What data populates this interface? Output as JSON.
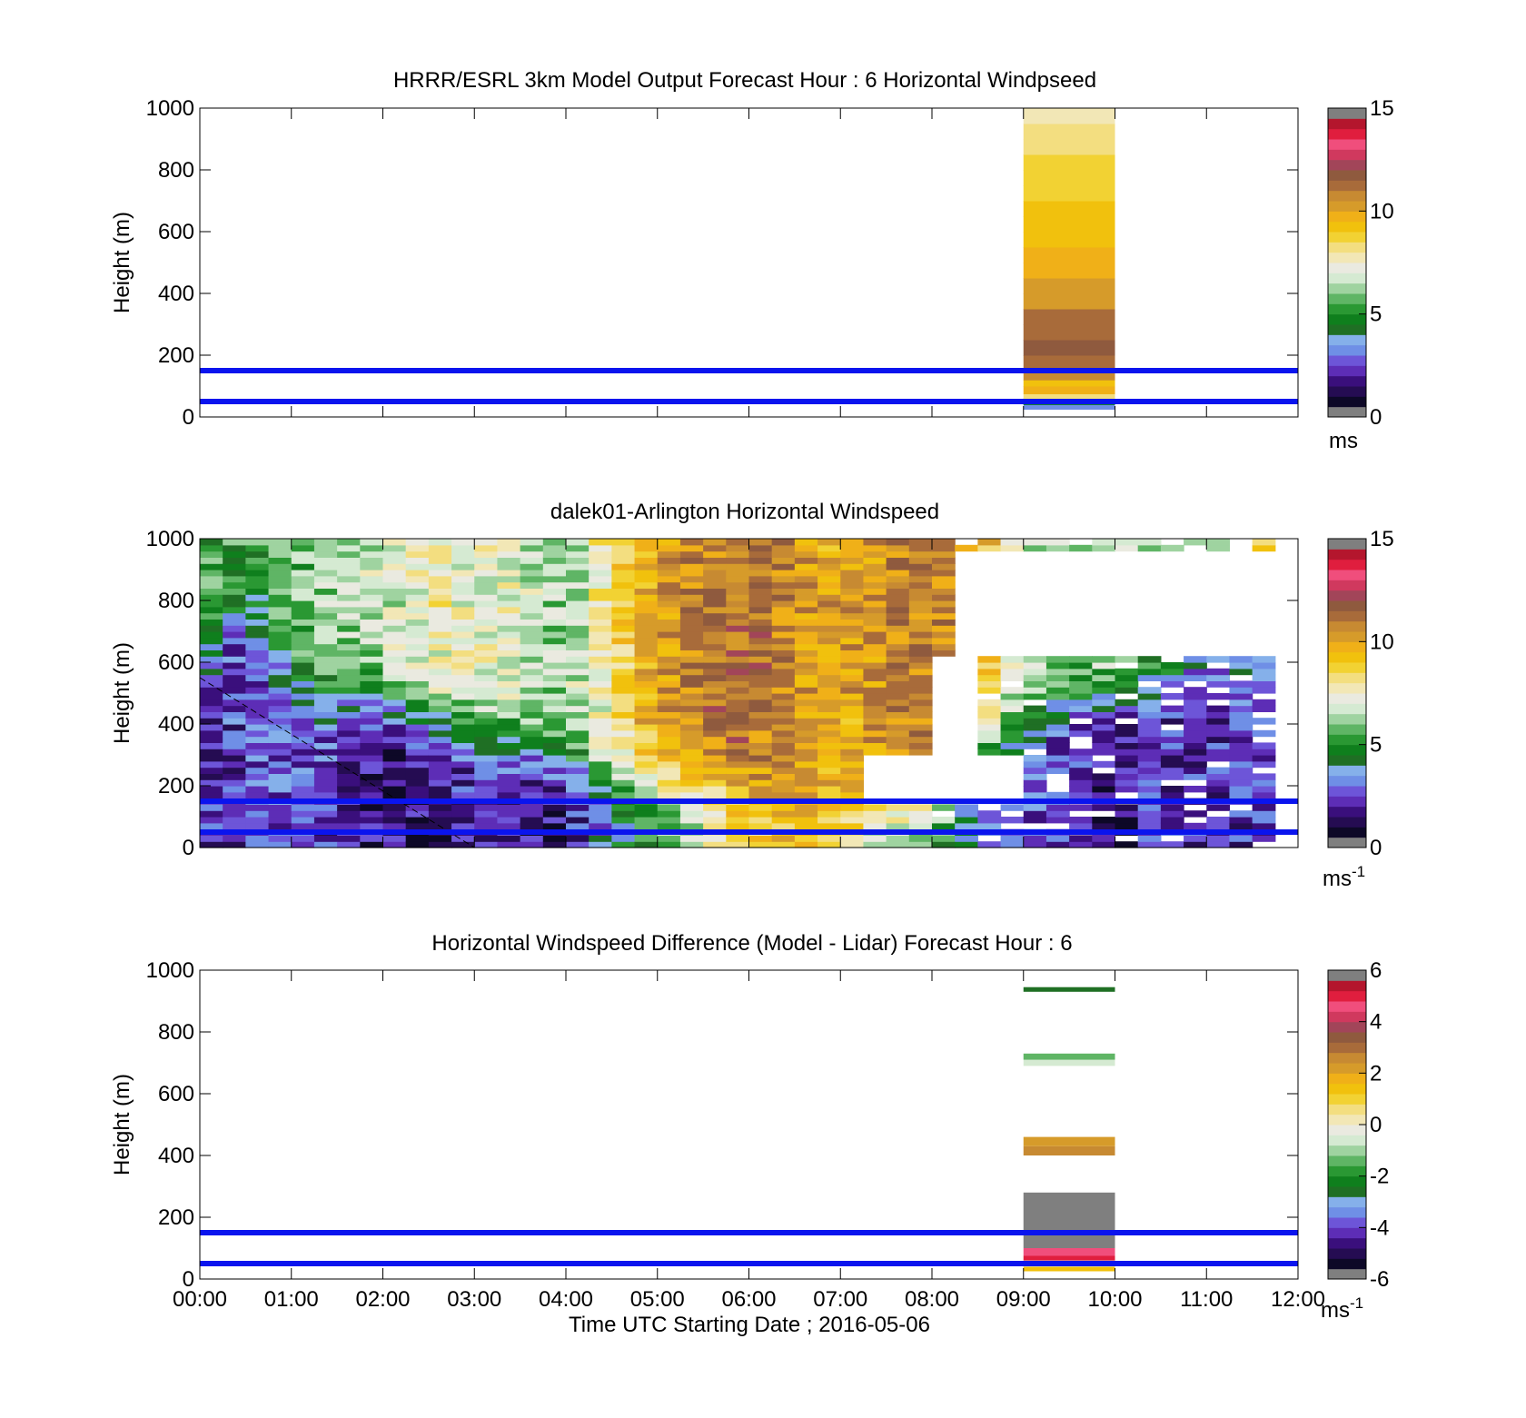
{
  "figure": {
    "xlabel": "Time UTC  Starting Date ; 2016-05-06",
    "ylabel": "Height (m)",
    "x_tick_labels": [
      "00:00",
      "01:00",
      "02:00",
      "03:00",
      "04:00",
      "05:00",
      "06:00",
      "07:00",
      "08:00",
      "09:00",
      "10:00",
      "11:00",
      "12:00"
    ],
    "y_tick_labels": [
      "0",
      "200",
      "400",
      "600",
      "800",
      "1000"
    ]
  },
  "colors": {
    "reference_line": "#0a14ee",
    "missing": "#ffffff"
  },
  "colormaps": {
    "speed": [
      "#7f7f7f",
      "#0d0827",
      "#250c52",
      "#3a0f7c",
      "#5d2db6",
      "#6d55d8",
      "#6f8fe6",
      "#85b0ea",
      "#1f6f24",
      "#0f7f1d",
      "#2a9833",
      "#5fb565",
      "#9fd3a0",
      "#d5ead2",
      "#eaeae0",
      "#f2e7b6",
      "#f3de80",
      "#f2d233",
      "#f1c10d",
      "#f0b018",
      "#d69b2a",
      "#c78a32",
      "#a86b3a",
      "#8f5a3e",
      "#a24559",
      "#d0395e",
      "#f04e7c",
      "#e01e3e",
      "#b4162d",
      "#7f7f7f"
    ],
    "diff": [
      "#7f7f7f",
      "#0d0827",
      "#250c52",
      "#3a0f7c",
      "#5d2db6",
      "#6d55d8",
      "#6f8fe6",
      "#85b0ea",
      "#1f6f24",
      "#0f7f1d",
      "#2a9833",
      "#5fb565",
      "#9fd3a0",
      "#d5ead2",
      "#eaeae0",
      "#f2e7b6",
      "#f3de80",
      "#f2d233",
      "#f1c10d",
      "#f0b018",
      "#d69b2a",
      "#c78a32",
      "#a86b3a",
      "#8f5a3e",
      "#a24559",
      "#d0395e",
      "#f04e7c",
      "#e01e3e",
      "#b4162d",
      "#7f7f7f"
    ]
  },
  "chart_data": [
    {
      "type": "heatmap",
      "title": "HRRR/ESRL 3km Model Output   Forecast Hour : 6 Horizontal Windpseed",
      "xlabel": "",
      "ylabel": "Height (m)",
      "x_unit": "hour UTC",
      "xlim": [
        0,
        12
      ],
      "ylim": [
        0,
        1000
      ],
      "colorbar": {
        "min": 0,
        "max": 15,
        "ticks": [
          "0",
          "5",
          "10",
          "15"
        ],
        "unit": "ms",
        "unit_sup": ""
      },
      "reference_lines_m": [
        50,
        150
      ],
      "columns": [
        {
          "x_start": 9,
          "x_end": 10,
          "z_edges": [
            25,
            40,
            60,
            75,
            100,
            120,
            150,
            200,
            250,
            300,
            350,
            400,
            450,
            500,
            550,
            600,
            650,
            700,
            750,
            800,
            850,
            900,
            950,
            1000
          ],
          "values": [
            3.2,
            4.6,
            8.3,
            9.5,
            9.2,
            10.5,
            11.2,
            11.5,
            11.3,
            11.0,
            10.4,
            10.0,
            9.7,
            9.5,
            9.3,
            9.2,
            9.0,
            8.9,
            8.6,
            8.5,
            8.4,
            8.0,
            7.8
          ]
        }
      ]
    },
    {
      "type": "heatmap",
      "title": "dalek01-Arlington  Horizontal Windspeed",
      "xlabel": "",
      "ylabel": "Height (m)",
      "x_unit": "hour UTC",
      "xlim": [
        0,
        12
      ],
      "ylim": [
        0,
        1000
      ],
      "colorbar": {
        "min": 0,
        "max": 15,
        "ticks": [
          "0",
          "5",
          "10",
          "15"
        ],
        "unit": "ms",
        "unit_sup": "-1"
      },
      "reference_lines_m": [
        50,
        150
      ],
      "dashed_line": {
        "from": [
          0,
          550
        ],
        "to": [
          3,
          0
        ]
      },
      "time_step_minutes": 15,
      "height_step_m": 20,
      "profiles_by_hour": [
        {
          "hour": 0.0,
          "lower": 2.0,
          "upper": 5.6,
          "transition": 560
        },
        {
          "hour": 0.5,
          "lower": 2.6,
          "upper": 5.0,
          "transition": 800
        },
        {
          "hour": 1.0,
          "lower": 3.0,
          "upper": 5.8,
          "transition": 560
        },
        {
          "hour": 1.5,
          "lower": 2.3,
          "upper": 6.3,
          "transition": 500
        },
        {
          "hour": 2.0,
          "lower": 1.5,
          "upper": 6.8,
          "transition": 480
        },
        {
          "hour": 2.5,
          "lower": 1.6,
          "upper": 7.5,
          "transition": 430
        },
        {
          "hour": 3.0,
          "lower": 2.2,
          "upper": 7.4,
          "transition": 390
        },
        {
          "hour": 3.5,
          "lower": 2.0,
          "upper": 6.9,
          "transition": 350
        },
        {
          "hour": 4.0,
          "lower": 1.6,
          "upper": 6.0,
          "transition": 290
        },
        {
          "hour": 4.5,
          "lower": 3.5,
          "upper": 8.2,
          "transition": 240
        },
        {
          "hour": 5.0,
          "lower": 5.0,
          "upper": 10.2,
          "transition": 210
        },
        {
          "hour": 5.5,
          "lower": 6.2,
          "upper": 11.0,
          "transition": 190
        },
        {
          "hour": 6.0,
          "lower": 8.5,
          "upper": 11.3,
          "transition": 200
        },
        {
          "hour": 6.5,
          "lower": 9.3,
          "upper": 10.5,
          "transition": 120
        },
        {
          "hour": 7.0,
          "lower": 8.6,
          "upper": 9.8,
          "transition": 150
        },
        {
          "hour": 7.5,
          "lower": 5.4,
          "upper": 10.6,
          "transition": 130
        },
        {
          "hour": 8.0,
          "lower": 5.2,
          "upper": 10.9,
          "transition": 120
        },
        {
          "hour": 8.5,
          "lower": 3.4,
          "upper": 10.0,
          "transition": 350
        },
        {
          "hour": 9.0,
          "lower": 3.0,
          "upper": 6.8,
          "transition": 420
        },
        {
          "hour": 9.5,
          "lower": 2.2,
          "upper": 6.2,
          "transition": 480
        },
        {
          "hour": 10.0,
          "lower": 1.8,
          "upper": 7.5,
          "transition": 520
        },
        {
          "hour": 10.5,
          "lower": 2.4,
          "upper": 5.8,
          "transition": 560
        },
        {
          "hour": 11.0,
          "lower": 2.0,
          "upper": 6.4,
          "transition": 620
        },
        {
          "hour": 11.5,
          "lower": 2.6,
          "upper": 8.5,
          "transition": 680
        },
        {
          "hour": 11.75,
          "lower": 2.4,
          "upper": 9.8,
          "transition": 690
        }
      ],
      "missing_regions": [
        {
          "x": [
            7.3,
            9.0
          ],
          "z": [
            150,
            300
          ]
        },
        {
          "x": [
            8.0,
            8.5
          ],
          "z": [
            300,
            620
          ]
        },
        {
          "x": [
            8.2,
            12.0
          ],
          "z": [
            620,
            960
          ]
        },
        {
          "x": [
            11.85,
            12.0
          ],
          "z": [
            0,
            1000
          ]
        }
      ]
    },
    {
      "type": "heatmap",
      "title": "Horizontal Windspeed Difference (Model - Lidar) Forecast Hour : 6",
      "xlabel": "Time UTC  Starting Date ; 2016-05-06",
      "ylabel": "Height (m)",
      "x_unit": "hour UTC",
      "xlim": [
        0,
        12
      ],
      "ylim": [
        0,
        1000
      ],
      "colorbar": {
        "min": -6,
        "max": 6,
        "ticks": [
          "-6",
          "-4",
          "-2",
          "0",
          "2",
          "4",
          "6"
        ],
        "unit": "ms",
        "unit_sup": "-1"
      },
      "reference_lines_m": [
        50,
        150
      ],
      "columns": [
        {
          "x_start": 9,
          "x_end": 10,
          "bands": [
            {
              "z": [
                25,
                40
              ],
              "value": 1.2
            },
            {
              "z": [
                40,
                60
              ],
              "value": -0.4
            },
            {
              "z": [
                60,
                75
              ],
              "value": 5.2
            },
            {
              "z": [
                75,
                100
              ],
              "value": 4.6
            },
            {
              "z": [
                100,
                280
              ],
              "value": 6.0
            },
            {
              "z": [
                400,
                430
              ],
              "value": 2.5
            },
            {
              "z": [
                430,
                460
              ],
              "value": 2.1
            },
            {
              "z": [
                690,
                710
              ],
              "value": -0.6
            },
            {
              "z": [
                710,
                730
              ],
              "value": -1.2
            },
            {
              "z": [
                930,
                945
              ],
              "value": -2.6
            }
          ]
        }
      ]
    }
  ]
}
